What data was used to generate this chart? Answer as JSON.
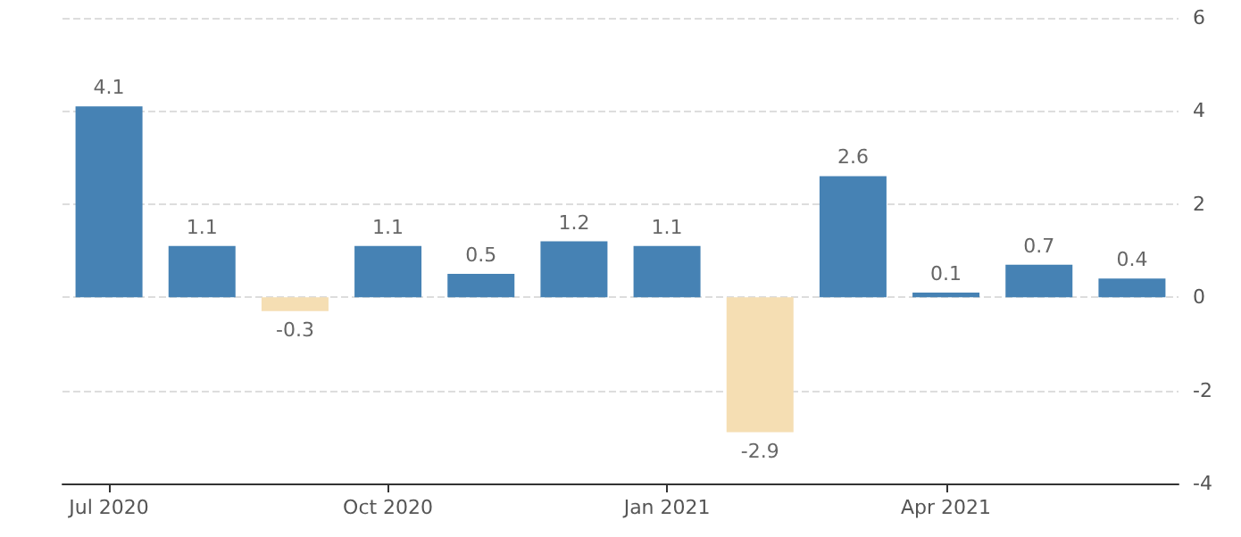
{
  "chart_data": {
    "type": "bar",
    "categories": [
      "Jul 2020",
      null,
      null,
      "Oct 2020",
      null,
      null,
      "Jan 2021",
      null,
      null,
      "Apr 2021",
      null,
      null
    ],
    "values": [
      4.1,
      1.1,
      -0.3,
      1.1,
      0.5,
      1.2,
      1.1,
      -2.9,
      2.6,
      0.1,
      0.7,
      0.4
    ],
    "colors": [
      "#4682b4",
      "#4682b4",
      "#f5deb3",
      "#4682b4",
      "#4682b4",
      "#4682b4",
      "#4682b4",
      "#f5deb3",
      "#4682b4",
      "#4682b4",
      "#4682b4",
      "#4682b4"
    ],
    "ylim": [
      -4,
      6
    ],
    "yticks": [
      -4,
      -2,
      0,
      2,
      4,
      6
    ],
    "grid": "y",
    "data_labels": true
  }
}
